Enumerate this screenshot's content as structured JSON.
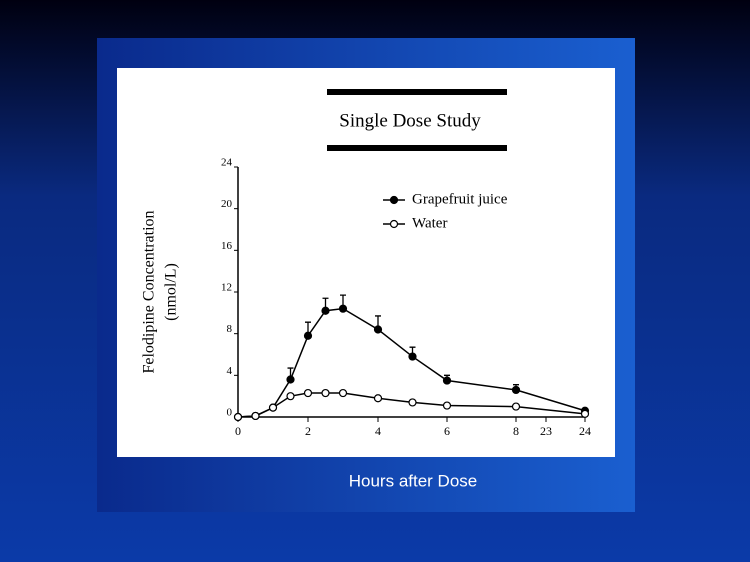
{
  "chart_data": {
    "type": "line",
    "title": "Single Dose Study",
    "y_label": [
      "Felodipine Concentration",
      "(nmol/L)"
    ],
    "x_label": "Hours after Dose",
    "xlim": [
      0,
      24
    ],
    "xticks": [
      0,
      2,
      4,
      6,
      8,
      23,
      24
    ],
    "ylim": [
      0,
      24
    ],
    "yticks": [
      0,
      4,
      8,
      12,
      16,
      20,
      24
    ],
    "x": [
      0,
      0.5,
      1,
      1.5,
      2,
      2.5,
      3,
      4,
      5,
      6,
      8,
      24
    ],
    "series": [
      {
        "name": "Grapefruit juice",
        "color": "#000000",
        "marker": "filled",
        "values": [
          0,
          0.1,
          0.9,
          3.6,
          7.8,
          10.2,
          10.4,
          8.4,
          5.8,
          3.5,
          2.6,
          0.6
        ],
        "errors": [
          null,
          null,
          null,
          1.1,
          1.3,
          1.2,
          1.3,
          1.3,
          0.9,
          0.5,
          0.5,
          null
        ]
      },
      {
        "name": "Water",
        "color": "#000000",
        "marker": "open",
        "values": [
          0,
          0.1,
          0.9,
          2.0,
          2.3,
          2.3,
          2.3,
          1.8,
          1.4,
          1.1,
          1.0,
          0.3
        ]
      }
    ]
  }
}
